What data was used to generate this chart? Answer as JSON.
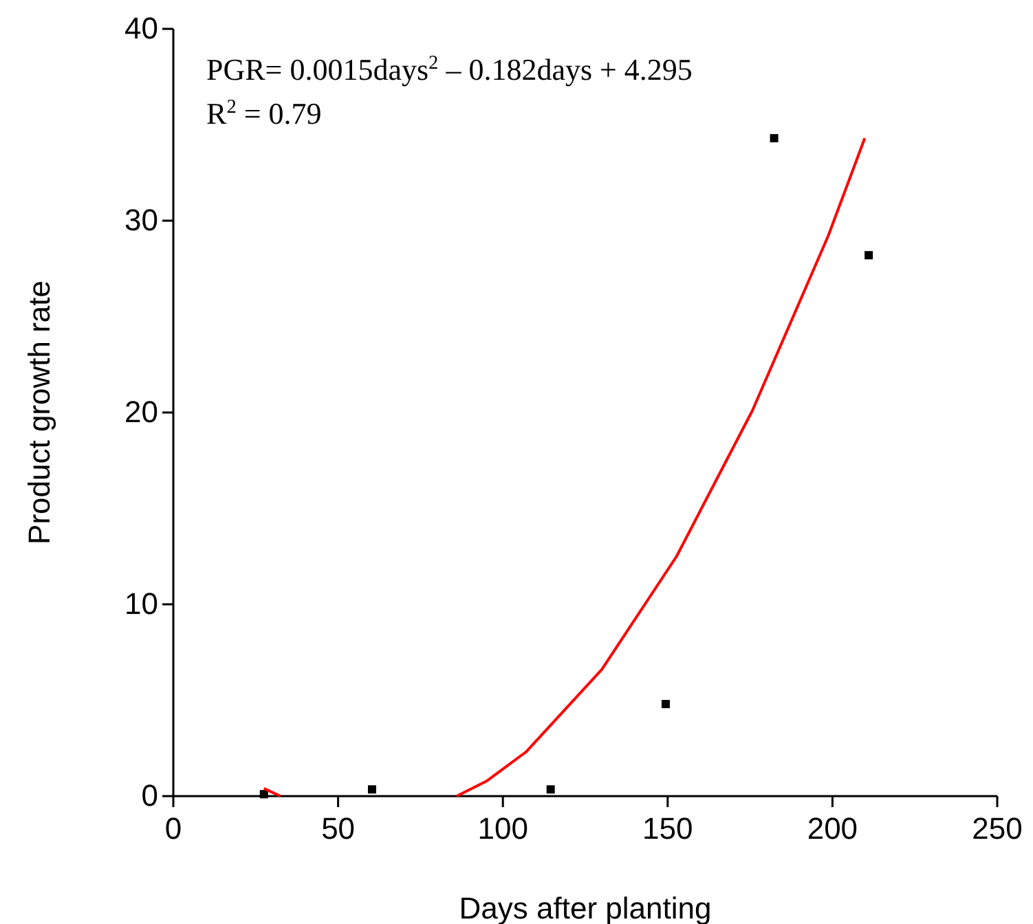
{
  "chart_data": {
    "type": "scatter",
    "xlabel": "Days after planting",
    "ylabel": "Product growth rate",
    "xlim": [
      0,
      250
    ],
    "xticks": [
      0,
      50,
      100,
      150,
      200,
      250
    ],
    "ylim": [
      0,
      40
    ],
    "yticks": [
      0,
      10,
      20,
      30,
      40
    ],
    "grid": false,
    "annotations": [
      "PGR=  0.0015days$^{2}$ – 0.182days + 4.295",
      "R$^{2}$ = 0.79"
    ],
    "series": [
      {
        "color": "#000000",
        "marker": "square",
        "x": [
          27.5,
          60.3,
          114.5,
          149.4,
          182.3,
          211
        ],
        "values": [
          0.1,
          0.35,
          0.35,
          4.8,
          34.3,
          28.2
        ]
      },
      {
        "type": "line",
        "color": "#ff0000",
        "marker": "none",
        "line_style": "solid",
        "x": [
          27.5,
          32.5,
          33,
          86,
          95.2,
          107,
          130,
          152.7,
          175.7,
          198.7,
          209.8
        ],
        "values": [
          0.4,
          0,
          null,
          0,
          0.8,
          2.3,
          6.6,
          12.5,
          20.1,
          29.2,
          34.3
        ]
      }
    ]
  }
}
